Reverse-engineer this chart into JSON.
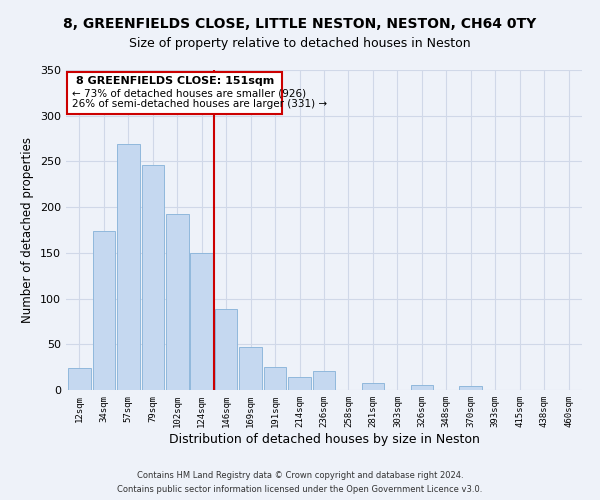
{
  "title": "8, GREENFIELDS CLOSE, LITTLE NESTON, NESTON, CH64 0TY",
  "subtitle": "Size of property relative to detached houses in Neston",
  "xlabel": "Distribution of detached houses by size in Neston",
  "ylabel": "Number of detached properties",
  "bar_labels": [
    "12sqm",
    "34sqm",
    "57sqm",
    "79sqm",
    "102sqm",
    "124sqm",
    "146sqm",
    "169sqm",
    "191sqm",
    "214sqm",
    "236sqm",
    "258sqm",
    "281sqm",
    "303sqm",
    "326sqm",
    "348sqm",
    "370sqm",
    "393sqm",
    "415sqm",
    "438sqm",
    "460sqm"
  ],
  "bar_values": [
    24,
    174,
    269,
    246,
    193,
    150,
    89,
    47,
    25,
    14,
    21,
    0,
    8,
    0,
    5,
    0,
    4,
    0,
    0,
    0,
    0
  ],
  "bar_color": "#c5d8f0",
  "bar_edge_color": "#90b8dc",
  "property_line_x": 6.0,
  "property_line_color": "#cc0000",
  "ylim": [
    0,
    350
  ],
  "yticks": [
    0,
    50,
    100,
    150,
    200,
    250,
    300,
    350
  ],
  "annotation_title": "8 GREENFIELDS CLOSE: 151sqm",
  "annotation_line1": "← 73% of detached houses are smaller (926)",
  "annotation_line2": "26% of semi-detached houses are larger (331) →",
  "annotation_box_color": "#ffffff",
  "annotation_border_color": "#cc0000",
  "footer_line1": "Contains HM Land Registry data © Crown copyright and database right 2024.",
  "footer_line2": "Contains public sector information licensed under the Open Government Licence v3.0.",
  "background_color": "#eef2f9",
  "grid_color": "#d0d8e8",
  "title_fontsize": 10,
  "subtitle_fontsize": 9
}
